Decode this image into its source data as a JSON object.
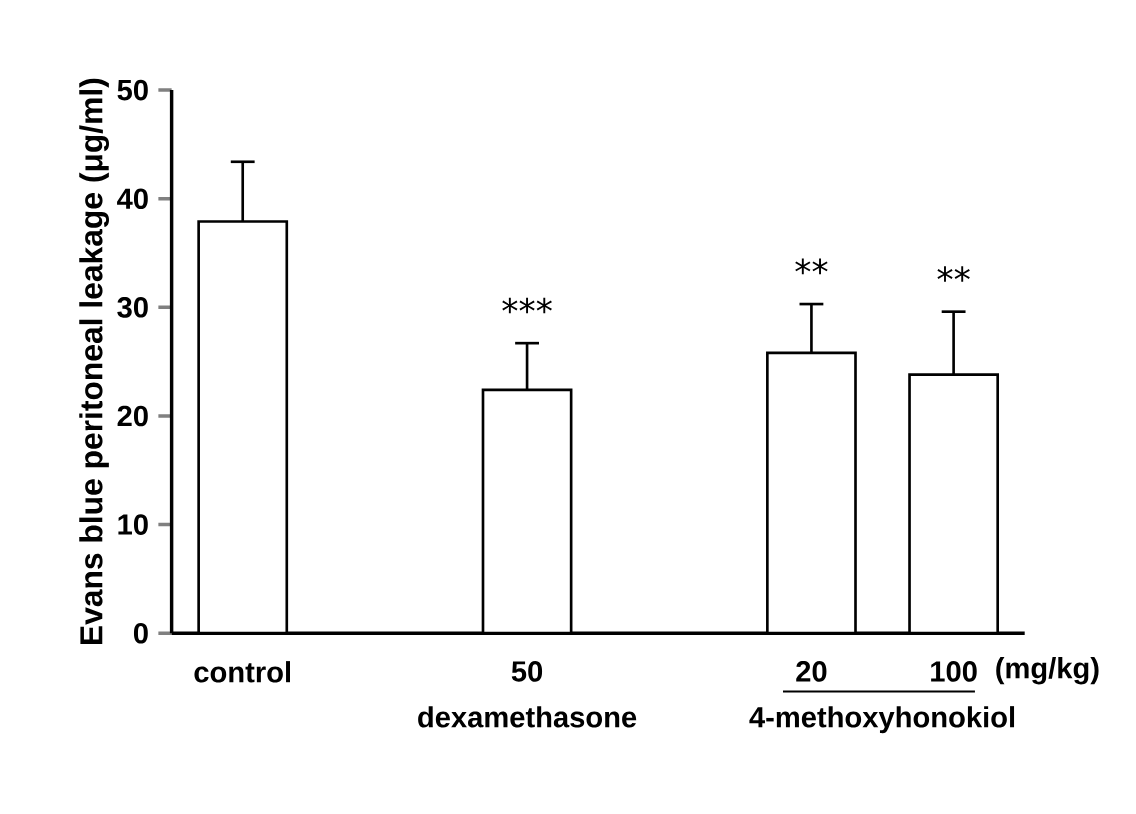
{
  "chart_data": {
    "type": "bar",
    "ylabel": "Evans blue peritoneal leakage (μg/ml)",
    "categories": [
      "control",
      null,
      "50",
      null,
      "20",
      "100"
    ],
    "values": [
      37.9,
      null,
      22.4,
      null,
      25.8,
      23.8
    ],
    "errors": [
      [
        37.9,
        43.4
      ],
      null,
      [
        22.4,
        26.7
      ],
      null,
      [
        25.8,
        30.3
      ],
      [
        23.8,
        29.6
      ]
    ],
    "color": "#ffffff",
    "ylim": [
      0,
      50
    ],
    "yticks": [
      0,
      10,
      20,
      30,
      40,
      50
    ],
    "annotations": [
      {
        "text": "***",
        "x": "50",
        "y": 26.7
      },
      {
        "text": "**",
        "x": "20",
        "y": 30.3
      },
      {
        "text": "**",
        "x": "100",
        "y": 29.6
      },
      "dexamethasone",
      "4-methoxyhonokiol",
      "(mg/kg)"
    ]
  }
}
